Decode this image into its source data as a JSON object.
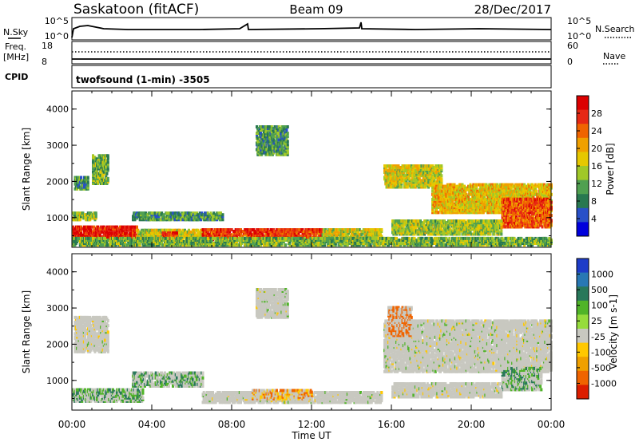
{
  "header": {
    "station": "Saskatoon (fitACF)",
    "beam": "Beam 09",
    "date": "28/Dec/2017"
  },
  "noise_panel": {
    "left_label": "N.Sky",
    "right_label": "N.Search",
    "left_ticks": [
      "10^5",
      "10^0"
    ],
    "right_ticks": [
      "10^5",
      "10^0"
    ]
  },
  "freq_panel": {
    "left_label": "Freq.",
    "left_unit": "[MHz]",
    "right_label": "Nave",
    "left_ticks": [
      "18",
      "8"
    ],
    "right_ticks": [
      "60",
      "0"
    ]
  },
  "cpid": {
    "label": "CPID",
    "value": "twofsound (1-min) -3505"
  },
  "chart_data": [
    {
      "type": "heatmap",
      "title": "Power",
      "ylabel": "Slant Range [km]",
      "xlabel": "Time UT",
      "ylim": [
        180,
        4500
      ],
      "xlim": [
        0,
        24
      ],
      "y_ticks": [
        "1000",
        "2000",
        "3000",
        "4000"
      ],
      "x_ticks": [
        "00:00",
        "04:00",
        "08:00",
        "12:00",
        "16:00",
        "20:00",
        "00:00"
      ],
      "colorbar": {
        "label": "Power [dB]",
        "ticks": [
          "28",
          "24",
          "20",
          "16",
          "12",
          "8",
          "4"
        ],
        "colors": [
          "#0000dc",
          "#2850c8",
          "#287850",
          "#50a050",
          "#a0c828",
          "#e6c800",
          "#f0a000",
          "#f06400",
          "#e62814",
          "#dc0000"
        ]
      },
      "regions": [
        {
          "t0": 0.1,
          "t1": 0.8,
          "r0": 1750,
          "r1": 2100,
          "level": 8
        },
        {
          "t0": 1.0,
          "t1": 1.8,
          "r0": 1900,
          "r1": 2700,
          "level": 10
        },
        {
          "t0": 0.0,
          "t1": 1.2,
          "r0": 900,
          "r1": 1100,
          "level": 12
        },
        {
          "t0": 0.0,
          "t1": 3.2,
          "r0": 380,
          "r1": 700,
          "level": 26
        },
        {
          "t0": 3.2,
          "t1": 6.5,
          "r0": 380,
          "r1": 650,
          "level": 14
        },
        {
          "t0": 4.5,
          "t1": 5.2,
          "r0": 350,
          "r1": 550,
          "level": 22
        },
        {
          "t0": 3.0,
          "t1": 7.5,
          "r0": 900,
          "r1": 1100,
          "level": 8
        },
        {
          "t0": 6.5,
          "t1": 12.5,
          "r0": 350,
          "r1": 650,
          "level": 24
        },
        {
          "t0": 12.5,
          "t1": 15.5,
          "r0": 350,
          "r1": 650,
          "level": 14
        },
        {
          "t0": 9.2,
          "t1": 10.8,
          "r0": 2700,
          "r1": 3500,
          "level": 8
        },
        {
          "t0": 15.6,
          "t1": 18.5,
          "r0": 1800,
          "r1": 2400,
          "level": 14
        },
        {
          "t0": 18.0,
          "t1": 24.0,
          "r0": 1100,
          "r1": 1900,
          "level": 16
        },
        {
          "t0": 21.5,
          "t1": 24.0,
          "r0": 700,
          "r1": 1500,
          "level": 22
        },
        {
          "t0": 16.0,
          "t1": 21.5,
          "r0": 500,
          "r1": 900,
          "level": 12
        },
        {
          "t0": 0.0,
          "t1": 24.0,
          "r0": 200,
          "r1": 400,
          "level": 10
        }
      ]
    },
    {
      "type": "heatmap",
      "title": "Velocity",
      "ylabel": "Slant Range [km]",
      "xlabel": "Time UT",
      "ylim": [
        180,
        4500
      ],
      "xlim": [
        0,
        24
      ],
      "y_ticks": [
        "1000",
        "2000",
        "3000",
        "4000"
      ],
      "x_ticks": [
        "00:00",
        "04:00",
        "08:00",
        "12:00",
        "16:00",
        "20:00",
        "00:00"
      ],
      "colorbar": {
        "label": "Velocity [m s-1]",
        "ticks": [
          "1000",
          "500",
          "100",
          "25",
          "-25",
          "-100",
          "-500",
          "-1000"
        ],
        "colors": [
          "#1e3cc8",
          "#2878b4",
          "#28785a",
          "#50b428",
          "#96dc3c",
          "#c8c8c0",
          "#ffc800",
          "#f0a000",
          "#f06400",
          "#dc1e00"
        ]
      },
      "regions": [
        {
          "t0": 0.1,
          "t1": 1.8,
          "r0": 1750,
          "r1": 2700,
          "level": 0
        },
        {
          "t0": 0.0,
          "t1": 3.5,
          "r0": 380,
          "r1": 700,
          "level": 100
        },
        {
          "t0": 3.0,
          "t1": 6.5,
          "r0": 800,
          "r1": 1200,
          "level": 100
        },
        {
          "t0": 6.5,
          "t1": 15.5,
          "r0": 350,
          "r1": 650,
          "level": 0
        },
        {
          "t0": 9.0,
          "t1": 12.0,
          "r0": 450,
          "r1": 700,
          "level": -100
        },
        {
          "t0": 9.2,
          "t1": 10.8,
          "r0": 2700,
          "r1": 3500,
          "level": 0
        },
        {
          "t0": 15.6,
          "t1": 24.0,
          "r0": 1200,
          "r1": 2600,
          "level": 0
        },
        {
          "t0": 15.8,
          "t1": 17.0,
          "r0": 2200,
          "r1": 3000,
          "level": -200
        },
        {
          "t0": 21.5,
          "t1": 23.5,
          "r0": 700,
          "r1": 1300,
          "level": 100
        },
        {
          "t0": 16.0,
          "t1": 21.5,
          "r0": 500,
          "r1": 900,
          "level": 0
        }
      ]
    }
  ]
}
